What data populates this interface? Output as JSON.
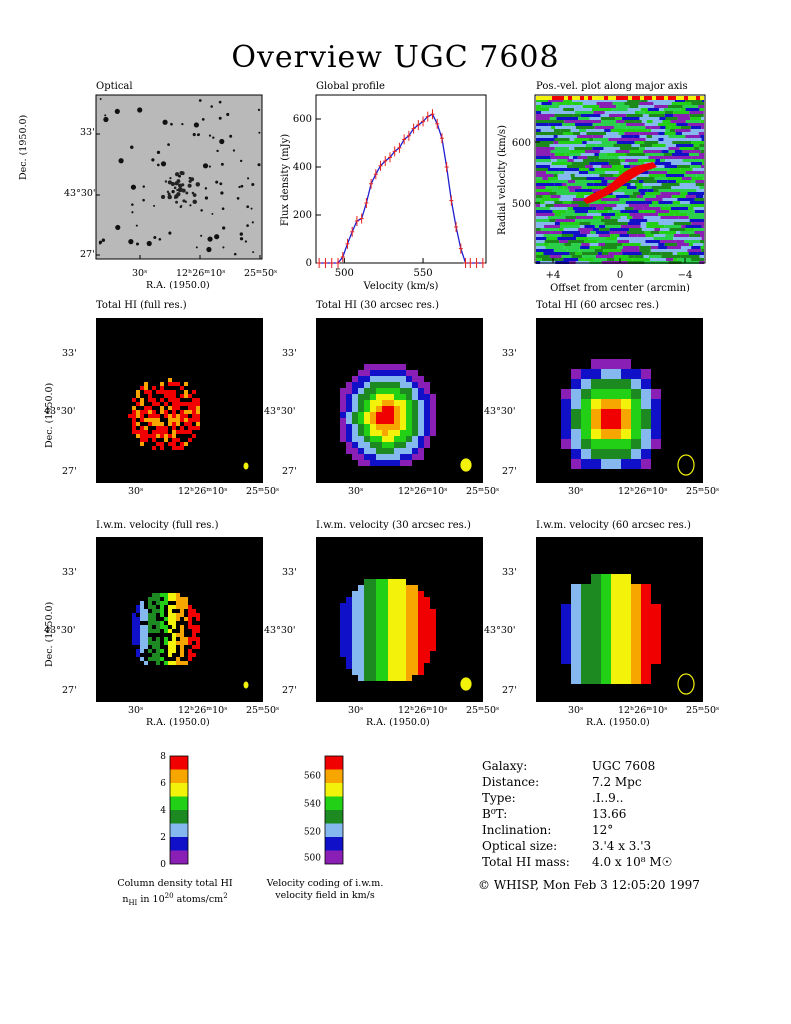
{
  "page": {
    "title": "Overview UGC 7608"
  },
  "panels": {
    "optical": "Optical",
    "global_profile": "Global profile",
    "pv": "Pos.-vel. plot along major axis",
    "hi_full": "Total HI (full res.)",
    "hi_30": "Total HI (30 arcsec res.)",
    "hi_60": "Total HI (60 arcsec res.)",
    "vel_full": "I.w.m. velocity (full res.)",
    "vel_30": "I.w.m. velocity (30 arcsec res.)",
    "vel_60": "I.w.m. velocity (60 arcsec res.)"
  },
  "axes": {
    "dec_label": "Dec. (1950.0)",
    "ra_label": "R.A. (1950.0)",
    "dec_ticks": [
      "33'",
      "43°30'",
      "27'"
    ],
    "ra_ticks": [
      "30ˢ",
      "12ʰ26ᵐ10ˢ",
      "25ᵐ50ˢ"
    ]
  },
  "chart_data": [
    {
      "type": "line",
      "title": "Global profile",
      "xlabel": "Velocity (km/s)",
      "ylabel": "Flux density (mJy)",
      "xlim": [
        482,
        590
      ],
      "ylim": [
        0,
        700
      ],
      "xticks": [
        500,
        550
      ],
      "yticks": [
        0,
        200,
        400,
        600
      ],
      "x": [
        484,
        488,
        492,
        496,
        499,
        502,
        505,
        508,
        511,
        514,
        517,
        520,
        523,
        526,
        529,
        532,
        535,
        538,
        541,
        544,
        547,
        550,
        553,
        556,
        559,
        562,
        565,
        568,
        571,
        574,
        577,
        580,
        584,
        588
      ],
      "y": [
        0,
        0,
        0,
        0,
        25,
        80,
        130,
        175,
        185,
        250,
        330,
        370,
        405,
        425,
        440,
        465,
        480,
        515,
        530,
        560,
        575,
        590,
        610,
        620,
        580,
        520,
        400,
        260,
        150,
        60,
        0,
        0,
        0,
        0
      ],
      "series": [
        {
          "values_color": "#1f1fd0"
        }
      ]
    },
    {
      "type": "heatmap",
      "title": "Pos.-vel. plot along major axis",
      "xlabel": "Offset from center (arcmin)",
      "ylabel": "Radial velocity (km/s)",
      "xticks": [
        "+4",
        "0",
        "−4"
      ],
      "yticks": [
        600,
        500
      ]
    },
    {
      "type": "heatmap",
      "title": "Column density total HI",
      "colorbar_ticks": [
        0,
        2,
        4,
        6,
        8
      ],
      "colors": [
        "#8a1fb5",
        "#1010c8",
        "#86b8f0",
        "#1c8a20",
        "#22d016",
        "#f2f20a",
        "#f7a600",
        "#f00000"
      ]
    },
    {
      "type": "heatmap",
      "title": "Velocity coding of i.w.m. velocity field in km/s",
      "colorbar_ticks": [
        500,
        520,
        540,
        560
      ],
      "colors": [
        "#8a1fb5",
        "#1010c8",
        "#86b8f0",
        "#1c8a20",
        "#22d016",
        "#f2f20a",
        "#f7a600",
        "#f00000"
      ]
    }
  ],
  "colorbars": {
    "density_caption_l1": "Column density total HI",
    "density_caption_l2": "n",
    "density_caption_sub": "HI",
    "density_caption_mid": " in 10",
    "density_caption_sup": "20",
    "density_caption_end": " atoms/cm",
    "density_caption_sup2": "2",
    "velocity_caption_l1": "Velocity coding of i.w.m.",
    "velocity_caption_l2": "velocity field in km/s"
  },
  "info": {
    "rows": [
      {
        "k": "Galaxy:",
        "v": "UGC 7608"
      },
      {
        "k": "Distance:",
        "v": "7.2 Mpc"
      },
      {
        "k": "Type:",
        "v": ".I..9.."
      },
      {
        "k": "B⁰T:",
        "v": "13.66"
      },
      {
        "k": "Inclination:",
        "v": "12°"
      },
      {
        "k": "Optical size:",
        "v": "3.'4 x 3.'3"
      },
      {
        "k": "Total HI mass:",
        "v": "4.0 x 10⁸ M☉"
      }
    ]
  },
  "footer": "© WHISP, Mon Feb  3 12:05:20 1997"
}
